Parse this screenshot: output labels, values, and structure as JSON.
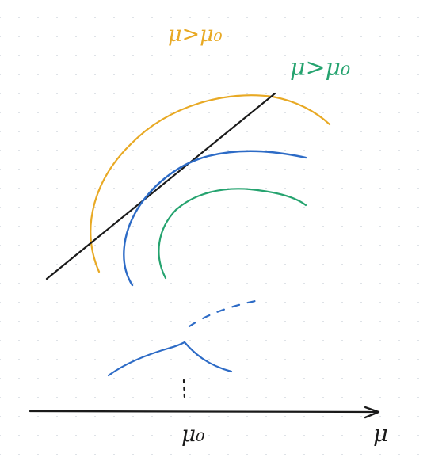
{
  "labels": {
    "orange_condition": "μ>μ₀",
    "green_condition": "μ>μ₀",
    "axis_tick": "μ₀",
    "axis_variable": "μ"
  },
  "colors": {
    "orange": "#e8a924",
    "green": "#25a36f",
    "blue": "#2d6bc6",
    "black": "#1a1a1a",
    "grid_dot": "#d9dde3"
  }
}
